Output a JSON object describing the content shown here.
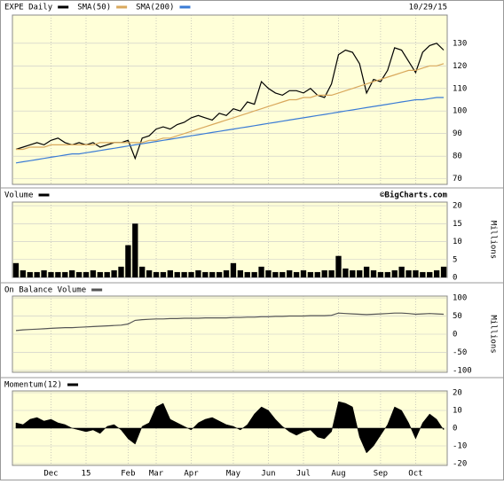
{
  "date": "10/29/15",
  "chart_data": [
    {
      "type": "line",
      "series": [
        {
          "name": "EXPE Daily",
          "color": "#000000",
          "values": [
            83,
            84,
            85,
            86,
            85,
            87,
            88,
            86,
            85,
            86,
            85,
            86,
            84,
            85,
            86,
            86,
            87,
            79,
            88,
            89,
            92,
            93,
            92,
            94,
            95,
            97,
            98,
            97,
            96,
            99,
            98,
            101,
            100,
            104,
            103,
            113,
            110,
            108,
            107,
            109,
            109,
            108,
            110,
            107,
            106,
            112,
            125,
            127,
            126,
            121,
            108,
            114,
            113,
            118,
            128,
            127,
            122,
            117,
            126,
            129,
            130,
            127
          ]
        },
        {
          "name": "SMA(50)",
          "color": "#d9a85c",
          "values": [
            83,
            83,
            84,
            84,
            84,
            85,
            85,
            85,
            85,
            85,
            85,
            85,
            86,
            86,
            86,
            86,
            86,
            86,
            86,
            87,
            87,
            88,
            88,
            89,
            90,
            91,
            92,
            93,
            94,
            95,
            96,
            97,
            98,
            99,
            100,
            101,
            102,
            103,
            104,
            105,
            105,
            106,
            106,
            107,
            107,
            107,
            108,
            109,
            110,
            111,
            112,
            113,
            114,
            115,
            116,
            117,
            118,
            118,
            119,
            120,
            120,
            121
          ]
        },
        {
          "name": "SMA(200)",
          "color": "#3a7bd5",
          "values": [
            77,
            77.5,
            78,
            78.5,
            79,
            79.5,
            80,
            80.5,
            81,
            81,
            81.5,
            82,
            82.5,
            83,
            83.5,
            84,
            84.5,
            85,
            85.5,
            86,
            86.5,
            87,
            87.5,
            88,
            88.5,
            89,
            89.5,
            90,
            90.5,
            91,
            91.5,
            92,
            92.5,
            93,
            93.5,
            94,
            94.5,
            95,
            95.5,
            96,
            96.5,
            97,
            97.5,
            98,
            98.5,
            99,
            99.5,
            100,
            100.5,
            101,
            101.5,
            102,
            102.5,
            103,
            103.5,
            104,
            104.5,
            105,
            105,
            105.5,
            106,
            106
          ]
        }
      ],
      "ylim": [
        67.5,
        142.5
      ],
      "yticks": [
        70,
        80,
        90,
        100,
        110,
        120,
        130
      ],
      "grid": true
    },
    {
      "type": "bar",
      "annotation": "©BigCharts.com",
      "ylabel": "Millions",
      "series": [
        {
          "name": "Volume",
          "color": "#000000",
          "values": [
            4,
            2,
            1.5,
            1.5,
            2,
            1.5,
            1.5,
            1.5,
            2,
            1.5,
            1.5,
            2,
            1.5,
            1.5,
            2,
            3,
            9,
            15,
            3,
            2,
            1.5,
            1.5,
            2,
            1.5,
            1.5,
            1.5,
            2,
            1.5,
            1.5,
            1.5,
            2,
            4,
            2,
            1.5,
            1.5,
            3,
            2,
            1.5,
            1.5,
            2,
            1.5,
            2,
            1.5,
            1.5,
            2,
            2,
            6,
            2.5,
            2,
            2,
            3,
            2,
            1.5,
            1.5,
            2,
            3,
            2,
            2,
            1.5,
            1.5,
            2,
            3
          ]
        }
      ],
      "ylim": [
        0,
        21
      ],
      "yticks": [
        0,
        5,
        10,
        15,
        20
      ],
      "grid": true
    },
    {
      "type": "line",
      "ylabel": "Millions",
      "series": [
        {
          "name": "On Balance Volume",
          "color": "#555555",
          "values": [
            10,
            12,
            13,
            14,
            15,
            16,
            17,
            18,
            18,
            19,
            20,
            21,
            22,
            23,
            24,
            25,
            28,
            38,
            40,
            41,
            42,
            42,
            43,
            43,
            44,
            44,
            44,
            45,
            45,
            45,
            45,
            46,
            46,
            47,
            47,
            48,
            48,
            49,
            49,
            50,
            50,
            50,
            51,
            51,
            51,
            52,
            58,
            57,
            56,
            55,
            54,
            55,
            56,
            57,
            58,
            58,
            57,
            55,
            56,
            57,
            56,
            55
          ]
        }
      ],
      "ylim": [
        -105,
        105
      ],
      "yticks": [
        -100,
        -50,
        0,
        50,
        100
      ],
      "grid": true
    },
    {
      "type": "area",
      "series": [
        {
          "name": "Momentum(12)",
          "color": "#000000",
          "values": [
            3,
            2,
            5,
            6,
            4,
            5,
            3,
            2,
            0,
            -1,
            -2,
            -1,
            -3,
            1,
            2,
            -1,
            -6,
            -9,
            1,
            3,
            12,
            14,
            5,
            3,
            1,
            -1,
            3,
            5,
            6,
            4,
            2,
            1,
            -1,
            2,
            8,
            12,
            10,
            5,
            1,
            -2,
            -4,
            -2,
            -1,
            -5,
            -6,
            -2,
            15,
            14,
            12,
            -5,
            -14,
            -10,
            -4,
            2,
            12,
            10,
            3,
            -6,
            3,
            8,
            5,
            -1
          ]
        }
      ],
      "categories": [
        null,
        null,
        null,
        null,
        null,
        "Dec",
        null,
        null,
        null,
        null,
        "15",
        null,
        null,
        null,
        null,
        null,
        "Feb",
        null,
        null,
        null,
        "Mar",
        null,
        null,
        null,
        null,
        "Apr",
        null,
        null,
        null,
        null,
        null,
        "May",
        null,
        null,
        null,
        null,
        "Jun",
        null,
        null,
        null,
        null,
        "Jul",
        null,
        null,
        null,
        null,
        "Aug",
        null,
        null,
        null,
        null,
        null,
        "Sep",
        null,
        null,
        null,
        null,
        "Oct",
        null,
        null,
        null,
        null
      ],
      "ylim": [
        -21,
        21
      ],
      "yticks": [
        -20,
        -10,
        0,
        10,
        20
      ],
      "grid": true
    }
  ]
}
